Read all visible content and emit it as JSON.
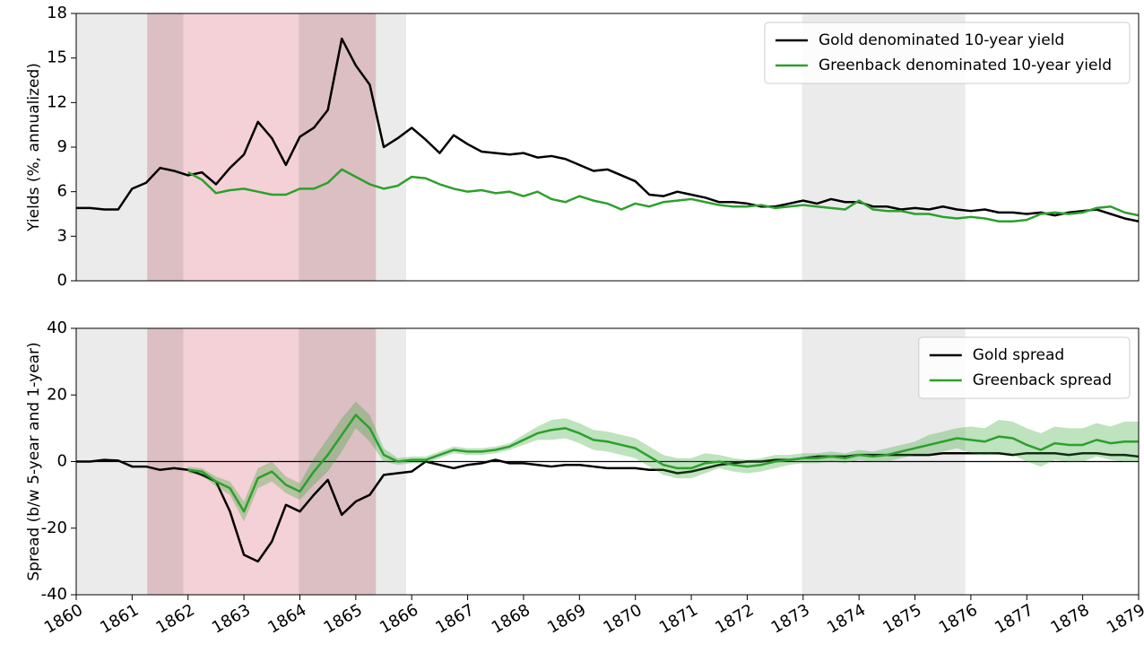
{
  "chart_data": [
    {
      "type": "line",
      "ylabel": "Yields (%, annualized)",
      "x": [
        1860,
        1860.25,
        1860.5,
        1860.75,
        1861,
        1861.25,
        1861.5,
        1861.75,
        1862,
        1862.25,
        1862.5,
        1862.75,
        1863,
        1863.25,
        1863.5,
        1863.75,
        1864,
        1864.25,
        1864.5,
        1864.75,
        1865,
        1865.25,
        1865.5,
        1865.75,
        1866,
        1866.25,
        1866.5,
        1866.75,
        1867,
        1867.25,
        1867.5,
        1867.75,
        1868,
        1868.25,
        1868.5,
        1868.75,
        1869,
        1869.25,
        1869.5,
        1869.75,
        1870,
        1870.25,
        1870.5,
        1870.75,
        1871,
        1871.25,
        1871.5,
        1871.75,
        1872,
        1872.25,
        1872.5,
        1872.75,
        1873,
        1873.25,
        1873.5,
        1873.75,
        1874,
        1874.25,
        1874.5,
        1874.75,
        1875,
        1875.25,
        1875.5,
        1875.75,
        1876,
        1876.25,
        1876.5,
        1876.75,
        1877,
        1877.25,
        1877.5,
        1877.75,
        1878,
        1878.25,
        1878.5,
        1878.75,
        1879
      ],
      "series": [
        {
          "name": "Gold denominated 10-year yield",
          "color": "#000000",
          "values": [
            4.9,
            4.9,
            4.8,
            4.8,
            6.2,
            6.6,
            7.6,
            7.4,
            7.1,
            7.3,
            6.5,
            7.6,
            8.5,
            10.7,
            9.6,
            7.8,
            9.7,
            10.3,
            11.5,
            16.3,
            14.5,
            13.2,
            9.0,
            9.6,
            10.3,
            9.5,
            8.6,
            9.8,
            9.2,
            8.7,
            8.6,
            8.5,
            8.6,
            8.3,
            8.4,
            8.2,
            7.8,
            7.4,
            7.5,
            7.1,
            6.7,
            5.8,
            5.7,
            6.0,
            5.8,
            5.6,
            5.3,
            5.3,
            5.2,
            5.0,
            5.0,
            5.2,
            5.4,
            5.2,
            5.5,
            5.3,
            5.3,
            5.0,
            5.0,
            4.8,
            4.9,
            4.8,
            5.0,
            4.8,
            4.7,
            4.8,
            4.6,
            4.6,
            4.5,
            4.6,
            4.4,
            4.6,
            4.7,
            4.8,
            4.5,
            4.2,
            4.0
          ]
        },
        {
          "name": "Greenback denominated 10-year yield",
          "color": "#2ca02c",
          "values": [
            null,
            null,
            null,
            null,
            null,
            null,
            null,
            null,
            7.3,
            6.8,
            5.9,
            6.1,
            6.2,
            6.0,
            5.8,
            5.8,
            6.2,
            6.2,
            6.6,
            7.5,
            7.0,
            6.5,
            6.2,
            6.4,
            7.0,
            6.9,
            6.5,
            6.2,
            6.0,
            6.1,
            5.9,
            6.0,
            5.7,
            6.0,
            5.5,
            5.3,
            5.7,
            5.4,
            5.2,
            4.8,
            5.2,
            5.0,
            5.3,
            5.4,
            5.5,
            5.3,
            5.1,
            5.0,
            5.0,
            5.1,
            4.9,
            5.0,
            5.1,
            5.0,
            4.9,
            4.8,
            5.4,
            4.8,
            4.7,
            4.7,
            4.5,
            4.5,
            4.3,
            4.2,
            4.3,
            4.2,
            4.0,
            4.0,
            4.1,
            4.5,
            4.6,
            4.5,
            4.6,
            4.9,
            5.0,
            4.6,
            4.4
          ]
        }
      ],
      "xlim": [
        1860,
        1879
      ],
      "ylim": [
        0,
        18
      ],
      "yticks": [
        0,
        3,
        6,
        9,
        12,
        15,
        18
      ],
      "spans": [
        {
          "start": 1860,
          "end": 1865.9,
          "color": "#ebebeb"
        },
        {
          "start": 1872.98,
          "end": 1875.9,
          "color": "#ebebeb"
        },
        {
          "start": 1861.27,
          "end": 1861.92,
          "color": "#dcbfc3"
        },
        {
          "start": 1861.92,
          "end": 1863.98,
          "color": "#f4d1d6"
        },
        {
          "start": 1863.98,
          "end": 1865.36,
          "color": "#dcbfc3"
        }
      ],
      "legend": "upper right"
    },
    {
      "type": "line",
      "ylabel": "Spread (b/w 5-year and 1-year)",
      "x": [
        1860,
        1860.25,
        1860.5,
        1860.75,
        1861,
        1861.25,
        1861.5,
        1861.75,
        1862,
        1862.25,
        1862.5,
        1862.75,
        1863,
        1863.25,
        1863.5,
        1863.75,
        1864,
        1864.25,
        1864.5,
        1864.75,
        1865,
        1865.25,
        1865.5,
        1865.75,
        1866,
        1866.25,
        1866.5,
        1866.75,
        1867,
        1867.25,
        1867.5,
        1867.75,
        1868,
        1868.25,
        1868.5,
        1868.75,
        1869,
        1869.25,
        1869.5,
        1869.75,
        1870,
        1870.25,
        1870.5,
        1870.75,
        1871,
        1871.25,
        1871.5,
        1871.75,
        1872,
        1872.25,
        1872.5,
        1872.75,
        1873,
        1873.25,
        1873.5,
        1873.75,
        1874,
        1874.25,
        1874.5,
        1874.75,
        1875,
        1875.25,
        1875.5,
        1875.75,
        1876,
        1876.25,
        1876.5,
        1876.75,
        1877,
        1877.25,
        1877.5,
        1877.75,
        1878,
        1878.25,
        1878.5,
        1878.75,
        1879
      ],
      "series": [
        {
          "name": "Gold spread",
          "color": "#000000",
          "values": [
            0,
            0,
            0.5,
            0.3,
            -1.5,
            -1.5,
            -2.5,
            -2,
            -2.5,
            -4,
            -6,
            -15,
            -28,
            -30,
            -24,
            -13,
            -15,
            -10,
            -5.5,
            -16,
            -12,
            -10,
            -4,
            -3.5,
            -3,
            0,
            -1,
            -2,
            -1,
            -0.5,
            0.5,
            -0.5,
            -0.5,
            -1,
            -1.5,
            -1,
            -1,
            -1.5,
            -2,
            -2,
            -2,
            -2.5,
            -2.5,
            -3.5,
            -3,
            -2,
            -1,
            -0.5,
            0,
            0,
            0.5,
            0.5,
            1,
            1.5,
            1.5,
            1.5,
            2,
            2,
            2,
            2,
            2,
            2,
            2.5,
            2.5,
            2.5,
            2.5,
            2.5,
            2,
            2.5,
            2.5,
            2.5,
            2,
            2.5,
            2.5,
            2,
            2,
            1.5
          ]
        },
        {
          "name": "Greenback spread",
          "color": "#2ca02c",
          "values": [
            null,
            null,
            null,
            null,
            null,
            null,
            null,
            null,
            -2.5,
            -3,
            -6,
            -8,
            -15,
            -5,
            -3,
            -7,
            -9,
            -3,
            2,
            8,
            14,
            10,
            2,
            0,
            0.5,
            0.5,
            2,
            3.5,
            3,
            3,
            3.5,
            4.5,
            6.5,
            8.5,
            9.5,
            10,
            8.5,
            6.5,
            6,
            5,
            4,
            1.5,
            -1,
            -2,
            -2,
            -0.5,
            0,
            -1,
            -1.5,
            -1,
            0,
            0.5,
            1,
            1,
            1.5,
            1,
            2,
            1.5,
            2,
            3,
            4,
            5,
            6,
            7,
            6.5,
            6,
            7.5,
            7,
            5,
            3.5,
            5.5,
            5,
            5,
            6.5,
            5.5,
            6,
            6
          ],
          "errors": [
            null,
            null,
            null,
            null,
            null,
            null,
            null,
            null,
            1,
            1,
            1.5,
            2,
            3,
            3,
            3,
            2.5,
            2.5,
            4,
            5,
            5,
            4,
            4,
            2,
            1,
            1,
            1,
            1,
            1,
            1,
            1,
            1,
            1,
            1.5,
            2,
            3,
            3,
            3,
            3,
            3,
            3,
            3,
            3,
            3,
            3,
            3,
            3,
            2,
            2,
            2,
            2,
            2,
            1.5,
            1.5,
            1.5,
            1.5,
            1.5,
            1.5,
            1.5,
            2,
            2,
            2,
            3,
            3,
            3,
            4,
            4,
            5,
            5,
            5,
            5,
            5,
            5,
            5,
            5,
            5,
            6,
            6
          ]
        }
      ],
      "xlim": [
        1860,
        1879
      ],
      "xticks": [
        1860,
        1861,
        1862,
        1863,
        1864,
        1865,
        1866,
        1867,
        1868,
        1869,
        1870,
        1871,
        1872,
        1873,
        1874,
        1875,
        1876,
        1877,
        1878,
        1879
      ],
      "ylim": [
        -40,
        40
      ],
      "yticks": [
        -40,
        -20,
        0,
        20,
        40
      ],
      "hline": 0,
      "spans": [
        {
          "start": 1860,
          "end": 1865.9,
          "color": "#ebebeb"
        },
        {
          "start": 1872.98,
          "end": 1875.9,
          "color": "#ebebeb"
        },
        {
          "start": 1861.27,
          "end": 1861.92,
          "color": "#dcbfc3"
        },
        {
          "start": 1861.92,
          "end": 1863.98,
          "color": "#f4d1d6"
        },
        {
          "start": 1863.98,
          "end": 1865.36,
          "color": "#dcbfc3"
        }
      ],
      "legend": "upper right"
    }
  ]
}
